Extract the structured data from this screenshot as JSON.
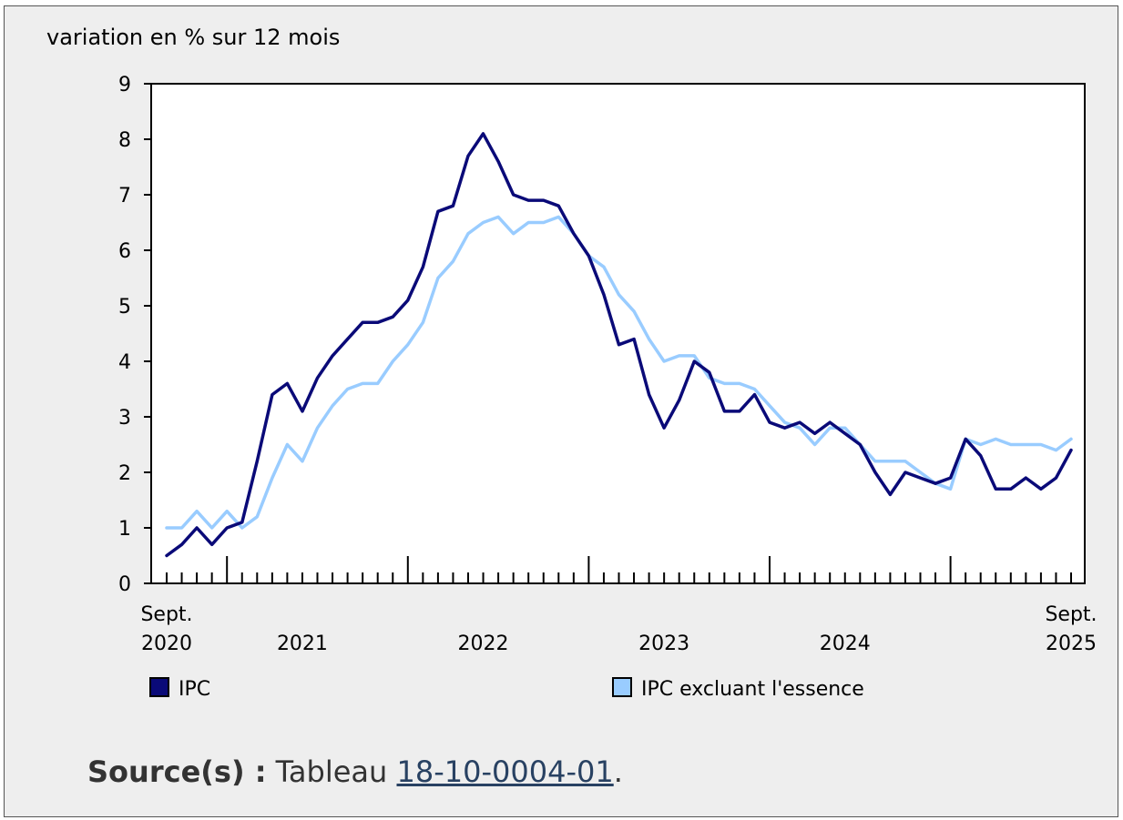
{
  "chart_data": {
    "type": "line",
    "ylabel": "variation en % sur 12 mois",
    "ylim": [
      0,
      9
    ],
    "yticks": [
      0,
      1,
      2,
      3,
      4,
      5,
      6,
      7,
      8,
      9
    ],
    "xlim": [
      "2020-09",
      "2025-09"
    ],
    "x_labels": [
      {
        "month": "2020-09",
        "lines": [
          "Sept.",
          "2020"
        ]
      },
      {
        "month": "2021-06",
        "lines": [
          "",
          "2021"
        ]
      },
      {
        "month": "2022-06",
        "lines": [
          "",
          "2022"
        ]
      },
      {
        "month": "2023-06",
        "lines": [
          "",
          "2023"
        ]
      },
      {
        "month": "2024-06",
        "lines": [
          "",
          "2024"
        ]
      },
      {
        "month": "2025-09",
        "lines": [
          "Sept.",
          "2025"
        ]
      }
    ],
    "year_start_ticks": [
      "2021-01",
      "2022-01",
      "2023-01",
      "2024-01",
      "2025-01"
    ],
    "grid": false,
    "legend_position": "bottom",
    "series": [
      {
        "name": "IPC",
        "color": "#0a0a78",
        "start_month": "2020-09",
        "values": [
          0.5,
          0.7,
          1.0,
          0.7,
          1.0,
          1.1,
          2.2,
          3.4,
          3.6,
          3.1,
          3.7,
          4.1,
          4.4,
          4.7,
          4.7,
          4.8,
          5.1,
          5.7,
          6.7,
          6.8,
          7.7,
          8.1,
          7.6,
          7.0,
          6.9,
          6.9,
          6.8,
          6.3,
          5.9,
          5.2,
          4.3,
          4.4,
          3.4,
          2.8,
          3.3,
          4.0,
          3.8,
          3.1,
          3.1,
          3.4,
          2.9,
          2.8,
          2.9,
          2.7,
          2.9,
          2.7,
          2.5,
          2.0,
          1.6,
          2.0,
          1.9,
          1.8,
          1.9,
          2.6,
          2.3,
          1.7,
          1.7,
          1.9,
          1.7,
          1.9,
          2.4
        ]
      },
      {
        "name": "IPC excluant l'essence",
        "color": "#99ccff",
        "start_month": "2020-09",
        "values": [
          1.0,
          1.0,
          1.3,
          1.0,
          1.3,
          1.0,
          1.2,
          1.9,
          2.5,
          2.2,
          2.8,
          3.2,
          3.5,
          3.6,
          3.6,
          4.0,
          4.3,
          4.7,
          5.5,
          5.8,
          6.3,
          6.5,
          6.6,
          6.3,
          6.5,
          6.5,
          6.6,
          6.3,
          5.9,
          5.7,
          5.2,
          4.9,
          4.4,
          4.0,
          4.1,
          4.1,
          3.7,
          3.6,
          3.6,
          3.5,
          3.2,
          2.9,
          2.8,
          2.5,
          2.8,
          2.8,
          2.5,
          2.2,
          2.2,
          2.2,
          2.0,
          1.8,
          1.7,
          2.6,
          2.5,
          2.6,
          2.5,
          2.5,
          2.5,
          2.4,
          2.6
        ]
      }
    ]
  },
  "source": {
    "label": "Source(s) :",
    "prefix": "Tableau",
    "link_text": "18-10-0004-01",
    "suffix": "."
  }
}
